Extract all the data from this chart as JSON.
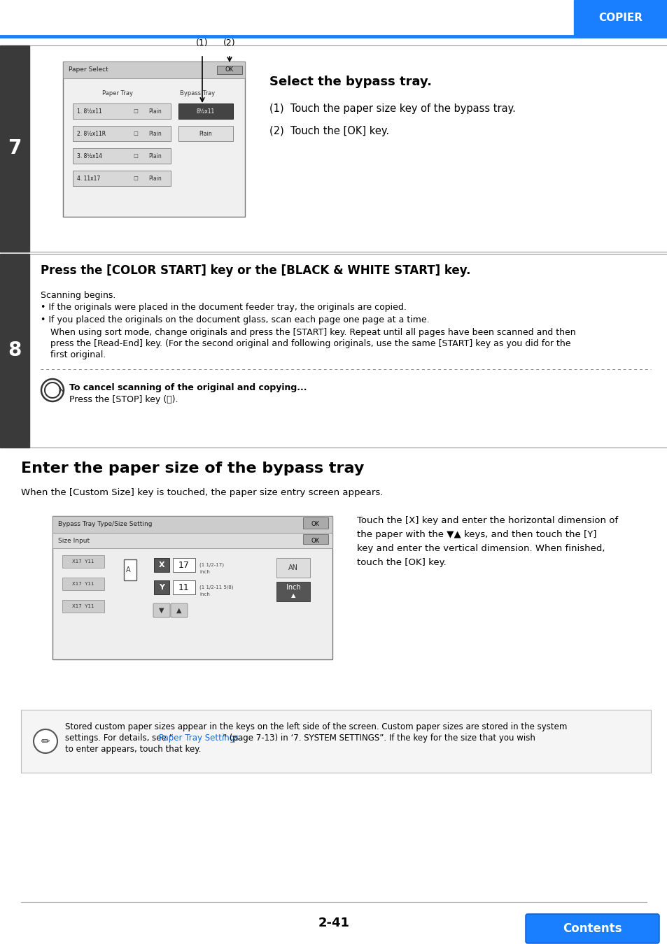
{
  "page_num": "2-41",
  "header_label": "COPIER",
  "header_blue": "#1a7fff",
  "step7_number": "7",
  "step7_title": "Select the bypass tray.",
  "step7_instruction1": "(1)  Touch the paper size key of the bypass tray.",
  "step7_instruction2": "(2)  Touch the [OK] key.",
  "step8_number": "8",
  "step8_title": "Press the [COLOR START] key or the [BLACK & WHITE START] key.",
  "step8_text1": "Scanning begins.",
  "step8_bullet1": "If the originals were placed in the document feeder tray, the originals are copied.",
  "step8_bullet2": "If you placed the originals on the document glass, scan each page one page at a time.",
  "step8_cont1": "When using sort mode, change originals and press the [START] key. Repeat until all pages have been scanned and then",
  "step8_cont2": "press the [Read-End] key. (For the second original and following originals, use the same [START] key as you did for the",
  "step8_cont3": "first original.",
  "cancel_bold": "To cancel scanning of the original and copying...",
  "cancel_normal": "Press the [STOP] key (Ⓢ).",
  "enter_title": "Enter the paper size of the bypass tray",
  "enter_subtitle": "When the [Custom Size] key is touched, the paper size entry screen appears.",
  "enter_right1": "Touch the [X] key and enter the horizontal dimension of",
  "enter_right2": "the paper with the ▼▲ keys, and then touch the [Y]",
  "enter_right3": "key and enter the vertical dimension. When finished,",
  "enter_right4": "touch the [OK] key.",
  "note_line1": "Stored custom paper sizes appear in the keys on the left side of the screen. Custom paper sizes are stored in the system",
  "note_line2a": "settings. For details, see “",
  "note_link": "Paper Tray Settings",
  "note_line2b": "” (page 7-13) in ‘7. SYSTEM SETTINGS”. If the key for the size that you wish",
  "note_line3": "to enter appears, touch that key.",
  "contents_label": "Contents",
  "sidebar_color": "#3a3a3a",
  "blue_color": "#1a7fff",
  "link_color": "#1a6dcc"
}
